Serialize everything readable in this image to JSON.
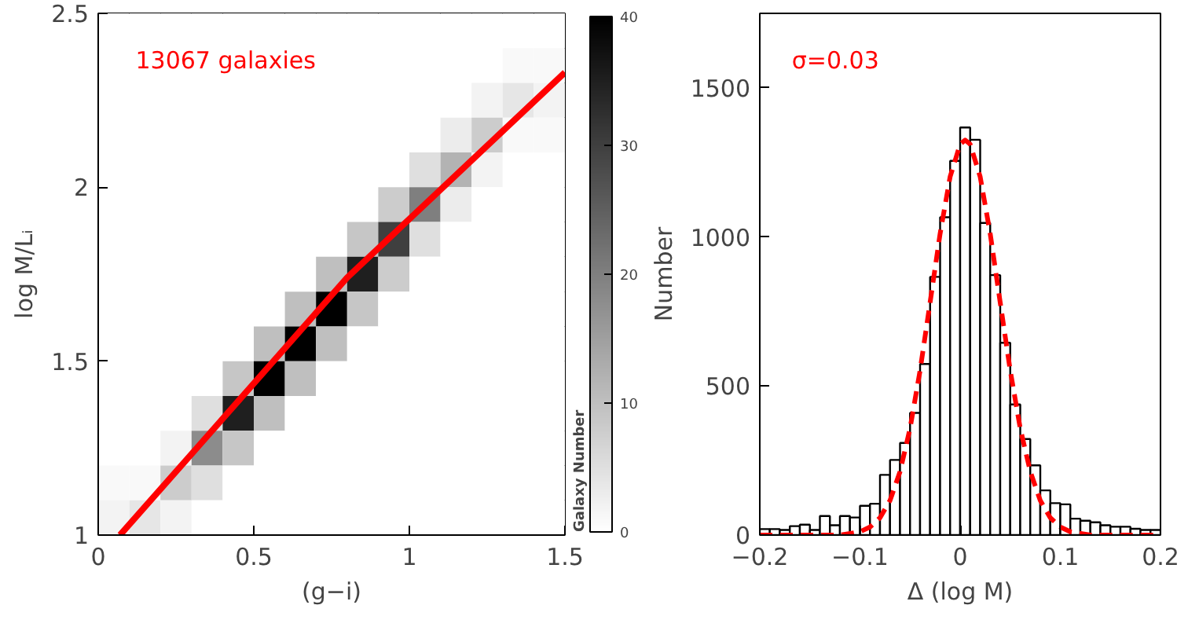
{
  "chart_data": [
    {
      "type": "heatmap",
      "xlabel": "(g−i)",
      "ylabel": "log M/Lᵢ",
      "clabel": "Galaxy Number",
      "annotations": [
        "13067 galaxies"
      ],
      "xlim": [
        0,
        1.5
      ],
      "ylim": [
        1,
        2.5
      ],
      "xticks": [
        0,
        0.5,
        1,
        1.5
      ],
      "yticks": [
        1,
        1.5,
        2,
        2.5
      ],
      "clim": [
        0,
        40
      ],
      "cticks": [
        0,
        10,
        20,
        30,
        40
      ],
      "x": [
        0.05,
        0.15,
        0.25,
        0.35,
        0.45,
        0.55,
        0.65,
        0.75,
        0.85,
        0.95,
        1.05,
        1.15,
        1.25,
        1.35,
        1.45
      ],
      "y": [
        2.45,
        2.35,
        2.25,
        2.15,
        2.05,
        1.95,
        1.85,
        1.75,
        1.65,
        1.55,
        1.45,
        1.35,
        1.25,
        1.15,
        1.05
      ],
      "cells": [
        [
          0,
          0,
          0,
          0,
          0,
          0,
          0,
          0,
          0,
          0,
          0,
          0,
          0,
          0,
          0
        ],
        [
          0,
          0,
          0,
          0,
          0,
          0,
          0,
          0,
          0,
          0,
          0,
          0,
          0,
          1,
          1
        ],
        [
          0,
          0,
          0,
          0,
          0,
          0,
          0,
          0,
          0,
          0,
          0,
          0,
          2,
          4,
          2
        ],
        [
          0,
          0,
          0,
          0,
          0,
          0,
          0,
          0,
          0,
          0,
          0,
          3,
          8,
          1,
          1
        ],
        [
          0,
          0,
          0,
          0,
          0,
          0,
          0,
          0,
          0,
          0,
          5,
          12,
          2,
          0,
          0
        ],
        [
          0,
          0,
          0,
          0,
          0,
          0,
          0,
          0,
          0,
          8,
          20,
          3,
          0,
          0,
          0
        ],
        [
          0,
          0,
          0,
          0,
          0,
          0,
          0,
          0,
          9,
          30,
          5,
          0,
          0,
          0,
          0
        ],
        [
          0,
          0,
          0,
          0,
          0,
          0,
          0,
          10,
          35,
          8,
          0,
          0,
          0,
          0,
          0
        ],
        [
          0,
          0,
          0,
          0,
          0,
          0,
          10,
          40,
          9,
          0,
          0,
          0,
          0,
          0,
          0
        ],
        [
          0,
          0,
          0,
          0,
          0,
          10,
          40,
          10,
          0,
          0,
          0,
          0,
          0,
          0,
          0
        ],
        [
          0,
          0,
          0,
          0,
          9,
          40,
          10,
          0,
          0,
          0,
          0,
          0,
          0,
          0,
          0
        ],
        [
          0,
          0,
          0,
          5,
          35,
          10,
          0,
          0,
          0,
          0,
          0,
          0,
          0,
          0,
          0
        ],
        [
          0,
          0,
          2,
          18,
          9,
          0,
          0,
          0,
          0,
          0,
          0,
          0,
          0,
          0,
          0
        ],
        [
          1,
          1,
          8,
          5,
          0,
          0,
          0,
          0,
          0,
          0,
          0,
          0,
          0,
          0,
          0
        ],
        [
          2,
          4,
          2,
          0,
          0,
          0,
          0,
          0,
          0,
          0,
          0,
          0,
          0,
          0,
          0
        ]
      ],
      "series": [
        {
          "type": "line",
          "color": "#ff0000",
          "x": [
            0.07,
            0.8,
            1.5
          ],
          "values": [
            1.0,
            1.74,
            2.33
          ]
        }
      ]
    },
    {
      "type": "histogram",
      "xlabel": "Δ (log M)",
      "ylabel": "Number",
      "annotations": [
        "σ=0.03"
      ],
      "xlim": [
        -0.2,
        0.2
      ],
      "ylim": [
        0,
        1750
      ],
      "xticks": [
        -0.2,
        -0.1,
        0,
        0.1,
        0.2
      ],
      "yticks": [
        0,
        500,
        1000,
        1500
      ],
      "color": "#ffffff",
      "bins": [
        -0.2,
        -0.19,
        -0.18,
        -0.17,
        -0.16,
        -0.15,
        -0.14,
        -0.13,
        -0.12,
        -0.11,
        -0.1,
        -0.09,
        -0.08,
        -0.07,
        -0.06,
        -0.05,
        -0.04,
        -0.03,
        -0.02,
        -0.01,
        0,
        0.01,
        0.02,
        0.03,
        0.04,
        0.05,
        0.06,
        0.07,
        0.08,
        0.09,
        0.1,
        0.11,
        0.12,
        0.13,
        0.14,
        0.15,
        0.16,
        0.17,
        0.18,
        0.19,
        0.2
      ],
      "values": [
        20,
        20,
        17,
        30,
        35,
        17,
        64,
        33,
        64,
        59,
        98,
        105,
        202,
        252,
        309,
        410,
        574,
        866,
        1066,
        1255,
        1367,
        1326,
        1047,
        872,
        645,
        438,
        322,
        234,
        150,
        107,
        103,
        55,
        48,
        43,
        33,
        28,
        28,
        21,
        17,
        17
      ],
      "series": [
        {
          "type": "line",
          "line_style": "dashed",
          "color": "#ff0000",
          "x": [
            -0.2,
            -0.12,
            -0.1,
            -0.09,
            -0.08,
            -0.07,
            -0.06,
            -0.05,
            -0.04,
            -0.03,
            -0.02,
            -0.01,
            0,
            0.005,
            0.01,
            0.02,
            0.03,
            0.04,
            0.05,
            0.06,
            0.07,
            0.08,
            0.09,
            0.1,
            0.11,
            0.13,
            0.2
          ],
          "values": [
            0,
            0,
            11,
            27,
            58,
            116,
            213,
            358,
            552,
            780,
            1011,
            1202,
            1311,
            1325,
            1311,
            1202,
            1011,
            780,
            552,
            358,
            213,
            116,
            58,
            27,
            11,
            0,
            0
          ]
        }
      ]
    }
  ]
}
